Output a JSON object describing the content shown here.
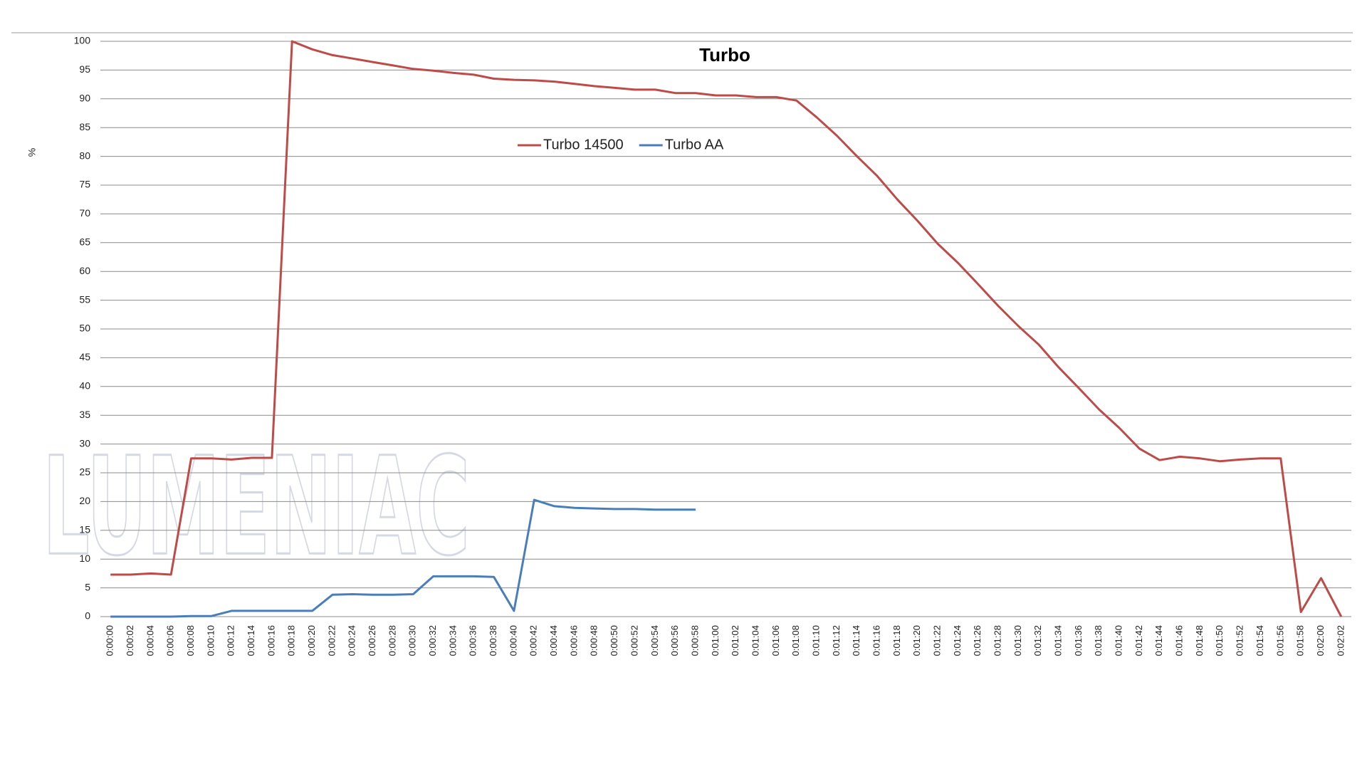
{
  "chart_data": {
    "type": "line",
    "title": "Turbo",
    "y_label": "%",
    "watermark": "LUMENIAC",
    "categories": [
      "0:00:00",
      "0:00:02",
      "0:00:04",
      "0:00:06",
      "0:00:08",
      "0:00:10",
      "0:00:12",
      "0:00:14",
      "0:00:16",
      "0:00:18",
      "0:00:20",
      "0:00:22",
      "0:00:24",
      "0:00:26",
      "0:00:28",
      "0:00:30",
      "0:00:32",
      "0:00:34",
      "0:00:36",
      "0:00:38",
      "0:00:40",
      "0:00:42",
      "0:00:44",
      "0:00:46",
      "0:00:48",
      "0:00:50",
      "0:00:52",
      "0:00:54",
      "0:00:56",
      "0:00:58",
      "0:01:00",
      "0:01:02",
      "0:01:04",
      "0:01:06",
      "0:01:08",
      "0:01:10",
      "0:01:12",
      "0:01:14",
      "0:01:16",
      "0:01:18",
      "0:01:20",
      "0:01:22",
      "0:01:24",
      "0:01:26",
      "0:01:28",
      "0:01:30",
      "0:01:32",
      "0:01:34",
      "0:01:36",
      "0:01:38",
      "0:01:40",
      "0:01:42",
      "0:01:44",
      "0:01:46",
      "0:01:48",
      "0:01:50",
      "0:01:52",
      "0:01:54",
      "0:01:56",
      "0:01:58",
      "0:02:00",
      "0:02:02"
    ],
    "series": [
      {
        "name": "Turbo 14500",
        "color": "#be4b48",
        "values": [
          7.3,
          7.3,
          7.5,
          7.3,
          27.5,
          27.5,
          27.3,
          27.6,
          27.6,
          100,
          98.6,
          97.6,
          97,
          96.4,
          95.8,
          95.2,
          94.9,
          94.5,
          94.2,
          93.5,
          93.3,
          93.2,
          93,
          92.6,
          92.2,
          91.9,
          91.6,
          91.6,
          91,
          91,
          90.6,
          90.6,
          90.3,
          90.3,
          89.7,
          86.8,
          83.6,
          80,
          76.6,
          72.5,
          68.8,
          64.8,
          61.5,
          57.8,
          54,
          50.5,
          47.3,
          43.3,
          39.7,
          36,
          32.8,
          29.2,
          27.2,
          27.8,
          27.5,
          27,
          27.3,
          27.5,
          27.5,
          0.8,
          6.7,
          0
        ]
      },
      {
        "name": "Turbo AA",
        "color": "#4a7ebb",
        "values": [
          0,
          0,
          0,
          0,
          0.1,
          0.1,
          1,
          1,
          1,
          1,
          1,
          3.8,
          3.9,
          3.8,
          3.8,
          3.9,
          7,
          7,
          7,
          6.9,
          1,
          20.3,
          19.2,
          18.9,
          18.8,
          18.7,
          18.7,
          18.6,
          18.6,
          18.6,
          null,
          null,
          null,
          null,
          null,
          null,
          null,
          null,
          null,
          null,
          null,
          null,
          null,
          null,
          null,
          null,
          null,
          null,
          null,
          null,
          null,
          null,
          null,
          null,
          null,
          null,
          null,
          null,
          null,
          null,
          null,
          null
        ]
      }
    ],
    "ylim": [
      0,
      100
    ],
    "yticks": [
      0,
      5,
      10,
      15,
      20,
      25,
      30,
      35,
      40,
      45,
      50,
      55,
      60,
      65,
      70,
      75,
      80,
      85,
      90,
      95,
      100
    ],
    "grid": true,
    "legend": "top"
  }
}
